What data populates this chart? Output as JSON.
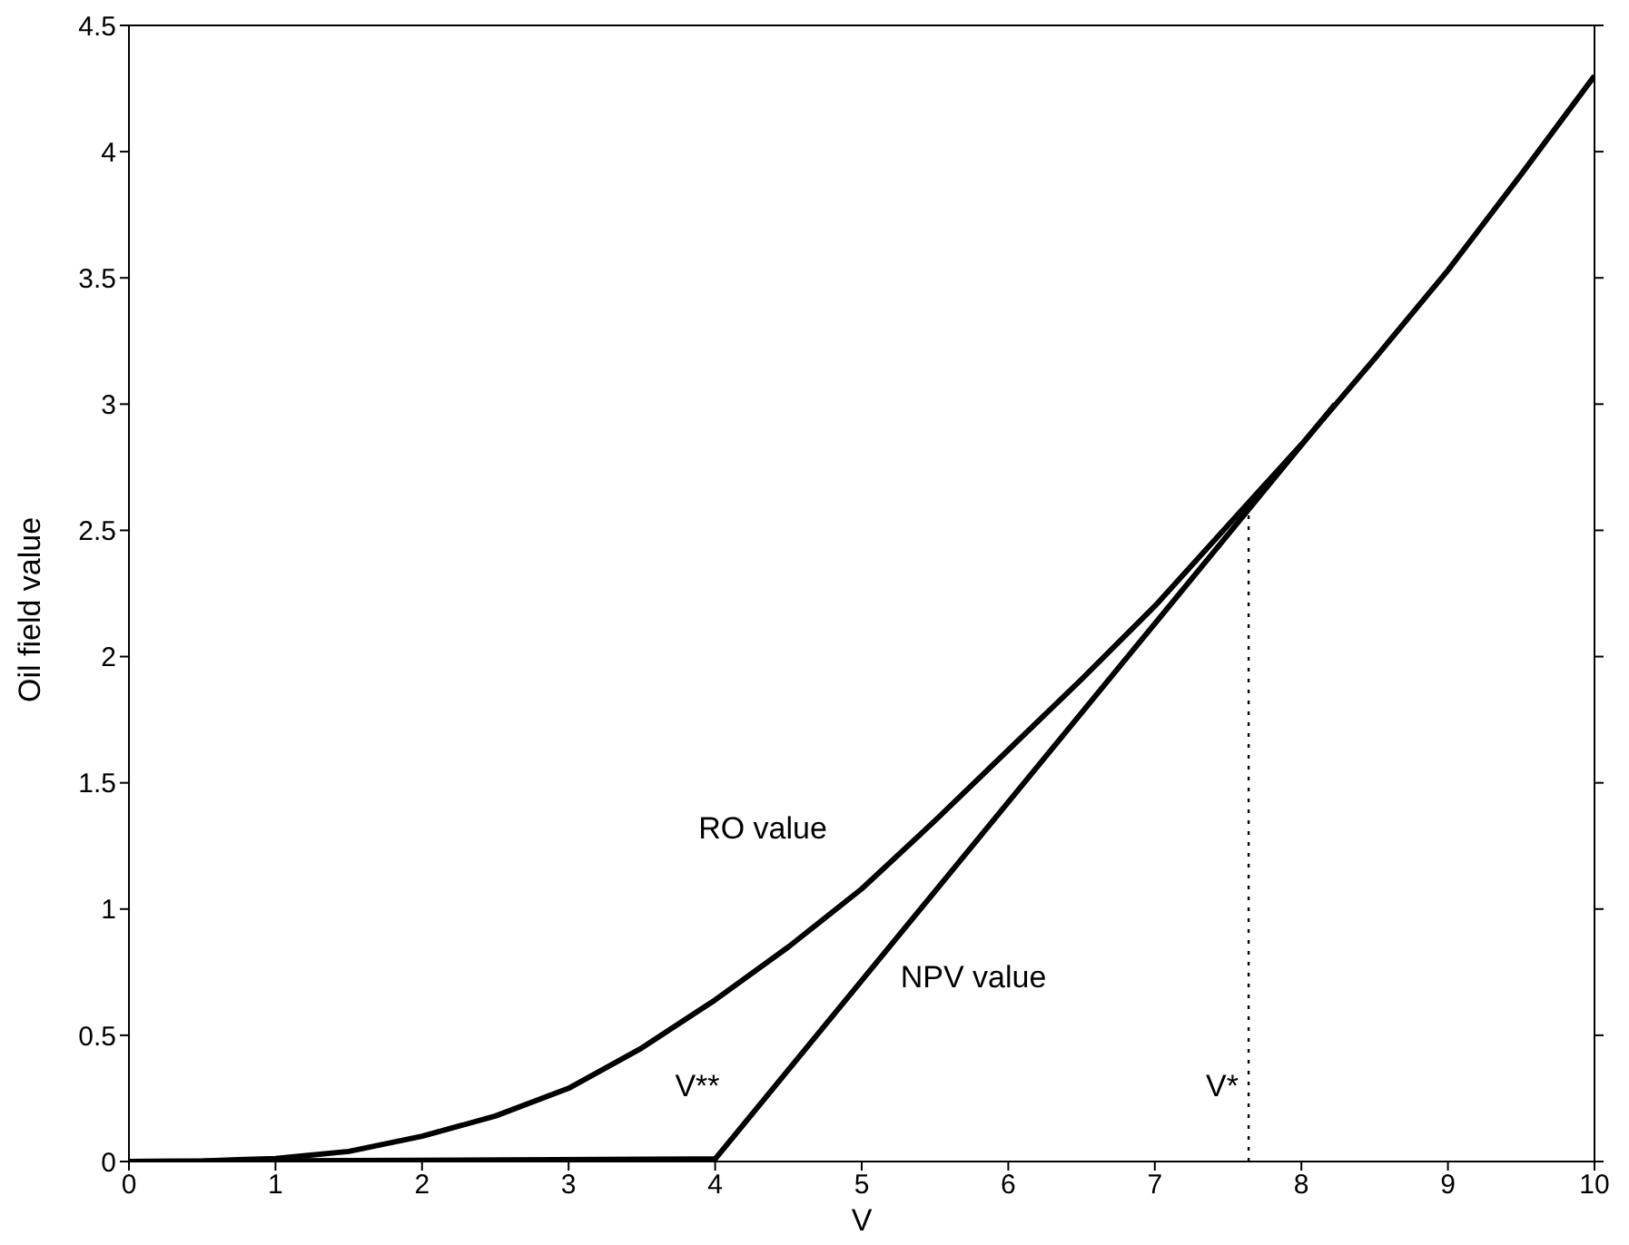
{
  "chart_data": {
    "type": "line",
    "xlabel": "V",
    "ylabel": "Oil field value",
    "xlim": [
      0,
      10
    ],
    "xticks": [
      0,
      1,
      2,
      3,
      4,
      5,
      6,
      7,
      8,
      9,
      10
    ],
    "ylim": [
      0,
      4.5
    ],
    "yticks": [
      0,
      0.5,
      1,
      1.5,
      2,
      2.5,
      3,
      3.5,
      4,
      4.5
    ],
    "marker": "none",
    "series": [
      {
        "name": "RO value",
        "color": "#000000",
        "x": [
          0,
          0.5,
          1,
          1.5,
          2,
          2.5,
          3,
          3.5,
          4,
          4.5,
          5,
          5.5,
          6,
          6.5,
          7,
          7.64,
          8,
          8.5,
          9,
          9.5,
          10
        ],
        "values": [
          0,
          0.002,
          0.012,
          0.04,
          0.1,
          0.18,
          0.29,
          0.45,
          0.64,
          0.85,
          1.08,
          1.35,
          1.63,
          1.91,
          2.2,
          2.61,
          2.84,
          3.18,
          3.53,
          3.91,
          4.3
        ]
      },
      {
        "name": "NPV value",
        "color": "#000000",
        "x": [
          0,
          4,
          8.23
        ],
        "values": [
          0,
          0.01,
          3.0
        ]
      },
      {
        "color": "#000000",
        "line_style": "dotted",
        "x": [
          7.64,
          7.64
        ],
        "values": [
          0,
          2.61
        ]
      }
    ],
    "annotations": [
      "V**",
      "V*"
    ]
  }
}
